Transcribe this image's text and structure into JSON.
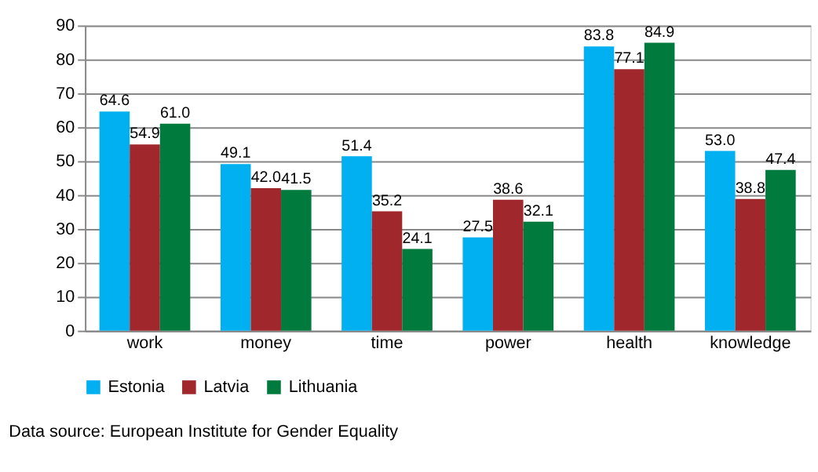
{
  "chart_data": {
    "type": "bar",
    "categories": [
      "work",
      "money",
      "time",
      "power",
      "health",
      "knowledge"
    ],
    "series": [
      {
        "name": "Estonia",
        "color": "#00b0f0",
        "values": [
          64.6,
          49.1,
          51.4,
          27.5,
          83.8,
          53.0
        ],
        "value_labels": [
          "64.6",
          "49.1",
          "51.4",
          "27.5",
          "83.8",
          "53.0"
        ]
      },
      {
        "name": "Latvia",
        "color": "#a0282d",
        "values": [
          54.9,
          42.0,
          35.2,
          38.6,
          77.1,
          38.8
        ],
        "value_labels": [
          "54.9",
          "42.0",
          "35.2",
          "38.6",
          "77.1",
          "38.8"
        ]
      },
      {
        "name": "Lithuania",
        "color": "#007a3d",
        "values": [
          61.0,
          41.5,
          24.1,
          32.1,
          84.9,
          47.4
        ],
        "value_labels": [
          "61.0",
          "41.5",
          "24.1",
          "32.1",
          "84.9",
          "47.4"
        ]
      }
    ],
    "ylim": [
      0,
      90
    ],
    "yticks": [
      0,
      10,
      20,
      30,
      40,
      50,
      60,
      70,
      80,
      90
    ],
    "grid": "y",
    "legend": "bottom",
    "annotations": [
      "Data source: European Institute for Gender Equality"
    ]
  }
}
